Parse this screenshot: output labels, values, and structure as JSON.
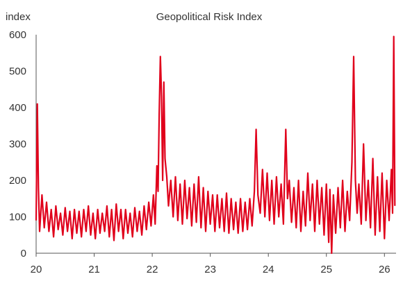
{
  "chart_data": {
    "type": "line",
    "title": "Geopolitical Risk Index",
    "ylabel": "index",
    "xlabel": "",
    "xlim": [
      20,
      26.2
    ],
    "ylim": [
      0,
      600
    ],
    "x_ticks": [
      "20",
      "21",
      "22",
      "23",
      "24",
      "25",
      "26"
    ],
    "y_ticks": [
      "0",
      "100",
      "200",
      "300",
      "400",
      "500",
      "600"
    ],
    "grid": false,
    "legend": "none",
    "line_color": "#e0001b",
    "series": [
      {
        "values": [
          [
            20.0,
            90
          ],
          [
            20.02,
            410
          ],
          [
            20.04,
            180
          ],
          [
            20.06,
            60
          ],
          [
            20.1,
            160
          ],
          [
            20.14,
            70
          ],
          [
            20.18,
            140
          ],
          [
            20.22,
            60
          ],
          [
            20.26,
            120
          ],
          [
            20.3,
            45
          ],
          [
            20.34,
            130
          ],
          [
            20.38,
            65
          ],
          [
            20.42,
            110
          ],
          [
            20.46,
            50
          ],
          [
            20.5,
            125
          ],
          [
            20.54,
            60
          ],
          [
            20.58,
            115
          ],
          [
            20.62,
            40
          ],
          [
            20.66,
            120
          ],
          [
            20.7,
            55
          ],
          [
            20.74,
            115
          ],
          [
            20.78,
            45
          ],
          [
            20.82,
            120
          ],
          [
            20.86,
            60
          ],
          [
            20.9,
            130
          ],
          [
            20.94,
            50
          ],
          [
            20.98,
            110
          ],
          [
            21.02,
            40
          ],
          [
            21.06,
            120
          ],
          [
            21.1,
            55
          ],
          [
            21.14,
            110
          ],
          [
            21.18,
            60
          ],
          [
            21.22,
            130
          ],
          [
            21.26,
            45
          ],
          [
            21.3,
            120
          ],
          [
            21.34,
            35
          ],
          [
            21.38,
            135
          ],
          [
            21.42,
            60
          ],
          [
            21.46,
            120
          ],
          [
            21.5,
            40
          ],
          [
            21.54,
            120
          ],
          [
            21.58,
            55
          ],
          [
            21.62,
            110
          ],
          [
            21.66,
            45
          ],
          [
            21.7,
            125
          ],
          [
            21.74,
            60
          ],
          [
            21.78,
            115
          ],
          [
            21.82,
            50
          ],
          [
            21.86,
            130
          ],
          [
            21.9,
            65
          ],
          [
            21.94,
            140
          ],
          [
            21.98,
            75
          ],
          [
            22.02,
            160
          ],
          [
            22.05,
            80
          ],
          [
            22.08,
            240
          ],
          [
            22.1,
            170
          ],
          [
            22.12,
            380
          ],
          [
            22.14,
            540
          ],
          [
            22.16,
            430
          ],
          [
            22.18,
            200
          ],
          [
            22.2,
            470
          ],
          [
            22.22,
            260
          ],
          [
            22.25,
            210
          ],
          [
            22.28,
            130
          ],
          [
            22.32,
            200
          ],
          [
            22.36,
            100
          ],
          [
            22.4,
            210
          ],
          [
            22.44,
            90
          ],
          [
            22.48,
            190
          ],
          [
            22.52,
            80
          ],
          [
            22.56,
            200
          ],
          [
            22.6,
            95
          ],
          [
            22.64,
            180
          ],
          [
            22.68,
            75
          ],
          [
            22.72,
            190
          ],
          [
            22.76,
            85
          ],
          [
            22.8,
            210
          ],
          [
            22.84,
            70
          ],
          [
            22.88,
            180
          ],
          [
            22.92,
            60
          ],
          [
            22.96,
            170
          ],
          [
            23.0,
            80
          ],
          [
            23.04,
            160
          ],
          [
            23.08,
            60
          ],
          [
            23.12,
            160
          ],
          [
            23.16,
            70
          ],
          [
            23.2,
            150
          ],
          [
            23.24,
            60
          ],
          [
            23.28,
            165
          ],
          [
            23.32,
            55
          ],
          [
            23.36,
            150
          ],
          [
            23.4,
            65
          ],
          [
            23.44,
            140
          ],
          [
            23.48,
            55
          ],
          [
            23.52,
            150
          ],
          [
            23.56,
            60
          ],
          [
            23.6,
            140
          ],
          [
            23.64,
            65
          ],
          [
            23.68,
            150
          ],
          [
            23.72,
            75
          ],
          [
            23.76,
            170
          ],
          [
            23.79,
            340
          ],
          [
            23.82,
            160
          ],
          [
            23.86,
            110
          ],
          [
            23.9,
            230
          ],
          [
            23.94,
            100
          ],
          [
            23.98,
            220
          ],
          [
            24.02,
            90
          ],
          [
            24.06,
            200
          ],
          [
            24.1,
            80
          ],
          [
            24.14,
            210
          ],
          [
            24.18,
            100
          ],
          [
            24.22,
            190
          ],
          [
            24.26,
            80
          ],
          [
            24.3,
            340
          ],
          [
            24.33,
            150
          ],
          [
            24.36,
            200
          ],
          [
            24.4,
            85
          ],
          [
            24.44,
            180
          ],
          [
            24.48,
            70
          ],
          [
            24.52,
            200
          ],
          [
            24.56,
            60
          ],
          [
            24.6,
            170
          ],
          [
            24.64,
            75
          ],
          [
            24.68,
            220
          ],
          [
            24.72,
            90
          ],
          [
            24.76,
            190
          ],
          [
            24.8,
            60
          ],
          [
            24.84,
            200
          ],
          [
            24.88,
            80
          ],
          [
            24.92,
            180
          ],
          [
            24.96,
            50
          ],
          [
            25.0,
            190
          ],
          [
            25.04,
            30
          ],
          [
            25.06,
            175
          ],
          [
            25.09,
            0
          ],
          [
            25.12,
            160
          ],
          [
            25.16,
            55
          ],
          [
            25.2,
            180
          ],
          [
            25.24,
            70
          ],
          [
            25.28,
            200
          ],
          [
            25.32,
            60
          ],
          [
            25.36,
            170
          ],
          [
            25.4,
            90
          ],
          [
            25.44,
            250
          ],
          [
            25.47,
            540
          ],
          [
            25.5,
            200
          ],
          [
            25.53,
            110
          ],
          [
            25.56,
            190
          ],
          [
            25.6,
            80
          ],
          [
            25.64,
            300
          ],
          [
            25.68,
            90
          ],
          [
            25.72,
            200
          ],
          [
            25.76,
            70
          ],
          [
            25.8,
            260
          ],
          [
            25.84,
            50
          ],
          [
            25.88,
            210
          ],
          [
            25.92,
            60
          ],
          [
            25.96,
            220
          ],
          [
            26.0,
            40
          ],
          [
            26.04,
            200
          ],
          [
            26.08,
            90
          ],
          [
            26.12,
            230
          ],
          [
            26.14,
            110
          ],
          [
            26.16,
            595
          ],
          [
            26.18,
            130
          ]
        ]
      }
    ]
  }
}
